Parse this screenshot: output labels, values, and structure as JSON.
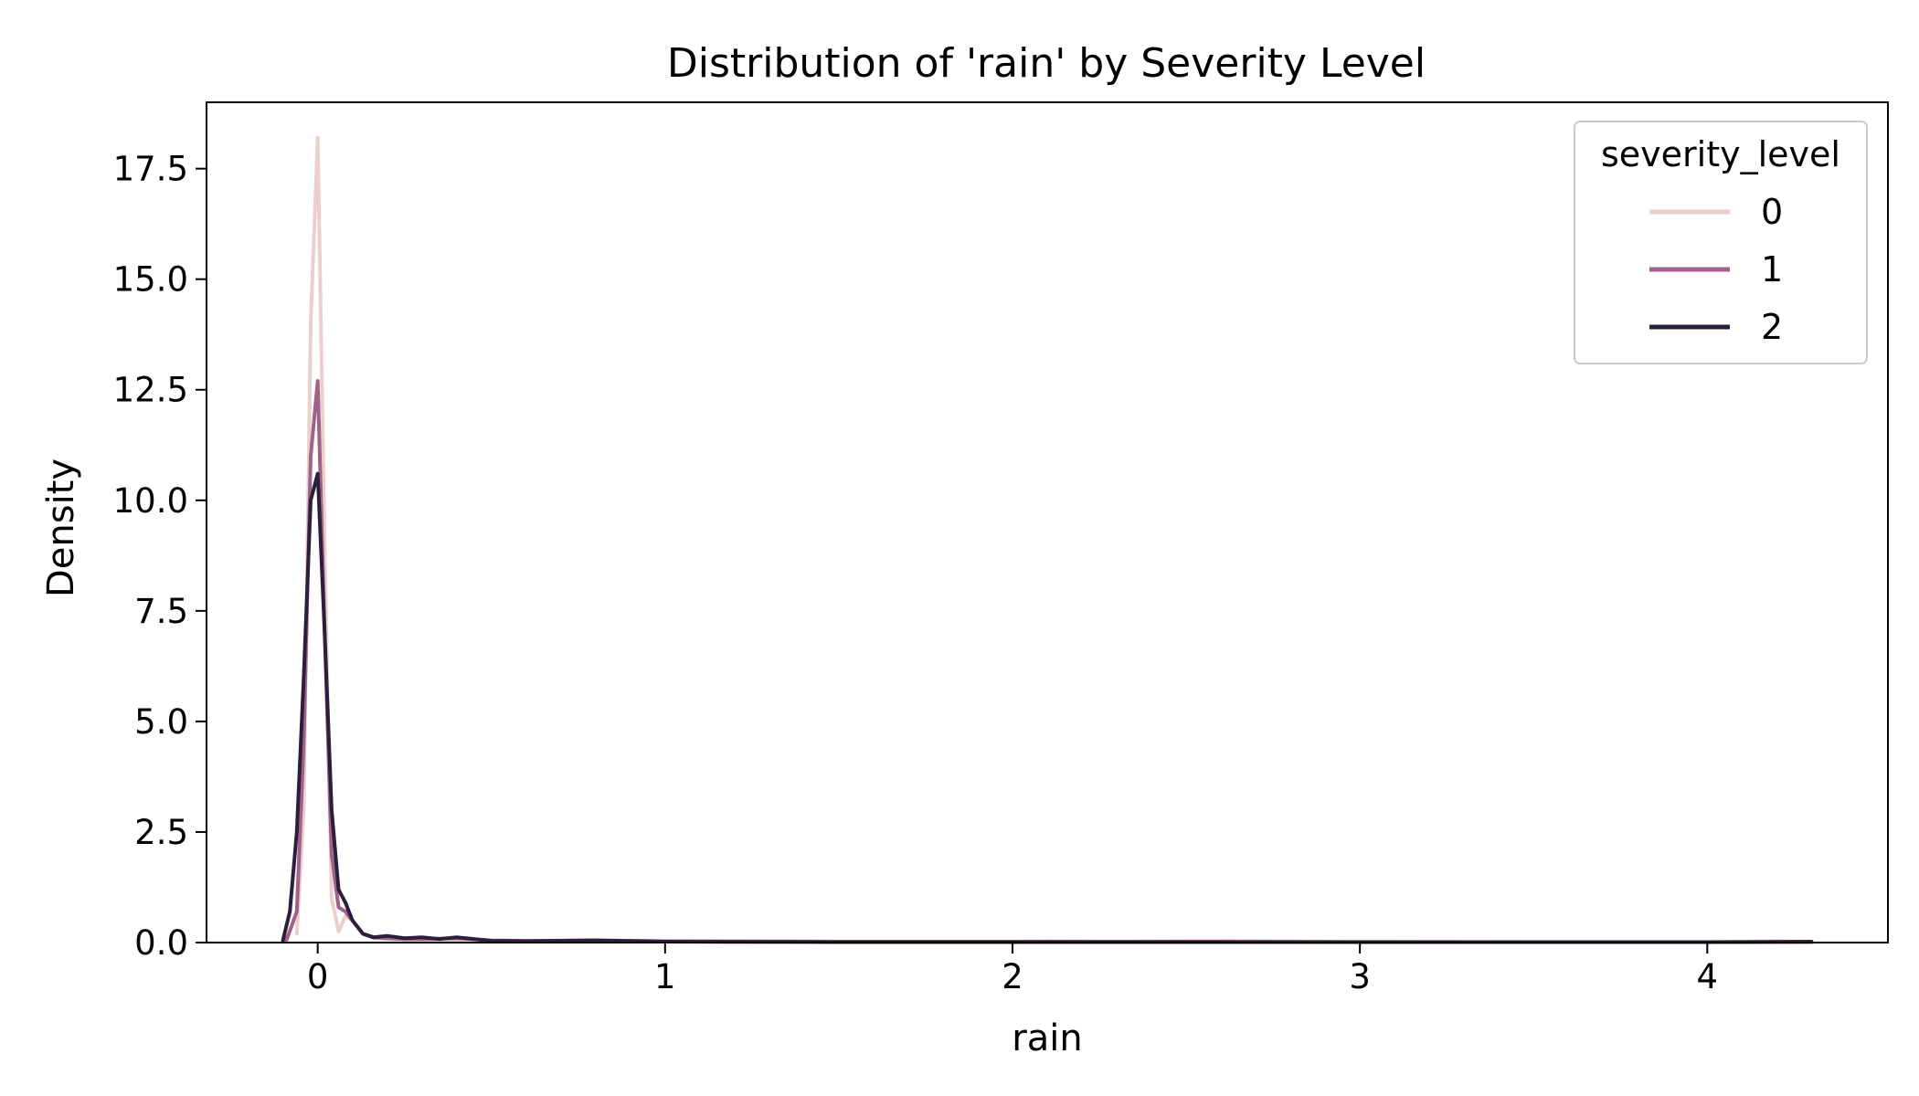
{
  "chart_data": {
    "type": "line",
    "title": "Distribution of 'rain' by Severity Level",
    "xlabel": "rain",
    "ylabel": "Density",
    "xlim": [
      -0.32,
      4.52
    ],
    "ylim": [
      0,
      19.0
    ],
    "xticks": [
      0,
      1,
      2,
      3,
      4
    ],
    "xtick_labels": [
      "0",
      "1",
      "2",
      "3",
      "4"
    ],
    "yticks": [
      0,
      2.5,
      5,
      7.5,
      10,
      12.5,
      15,
      17.5
    ],
    "ytick_labels": [
      "0.0",
      "2.5",
      "5.0",
      "7.5",
      "10.0",
      "12.5",
      "15.0",
      "17.5"
    ],
    "grid": false,
    "legend": {
      "title": "severity_level",
      "placement": "top-right"
    },
    "series": [
      {
        "name": "0",
        "color": "#ebcfcb",
        "x": [
          -0.06,
          -0.04,
          -0.02,
          0.0,
          0.02,
          0.04,
          0.06,
          0.08,
          0.1,
          0.13,
          0.16,
          0.2,
          0.25,
          0.3,
          0.4,
          0.6,
          0.8,
          1.0,
          1.5,
          2.0,
          2.1,
          2.3,
          2.6,
          3.0,
          3.5,
          4.0,
          4.2,
          4.3
        ],
        "y": [
          0.2,
          3.0,
          14.0,
          18.2,
          9.0,
          1.0,
          0.25,
          0.6,
          0.5,
          0.2,
          0.1,
          0.08,
          0.06,
          0.05,
          0.04,
          0.03,
          0.04,
          0.03,
          0.02,
          0.02,
          0.03,
          0.02,
          0.04,
          0.02,
          0.01,
          0.01,
          0.03,
          0.01
        ]
      },
      {
        "name": "1",
        "color": "#a1628a",
        "x": [
          -0.09,
          -0.06,
          -0.04,
          -0.02,
          0.0,
          0.02,
          0.04,
          0.06,
          0.08,
          0.1,
          0.13,
          0.16,
          0.2,
          0.25,
          0.3,
          0.4,
          0.5,
          0.6,
          0.8,
          1.0,
          1.5,
          2.0,
          2.5,
          3.0,
          4.0,
          4.3
        ],
        "y": [
          0.05,
          0.7,
          4.5,
          11.0,
          12.7,
          7.0,
          2.0,
          0.8,
          0.7,
          0.5,
          0.2,
          0.12,
          0.1,
          0.08,
          0.08,
          0.1,
          0.05,
          0.04,
          0.05,
          0.03,
          0.02,
          0.02,
          0.02,
          0.01,
          0.01,
          0.01
        ]
      },
      {
        "name": "2",
        "color": "#2d1e3e",
        "x": [
          -0.1,
          -0.08,
          -0.06,
          -0.04,
          -0.02,
          0.0,
          0.02,
          0.04,
          0.06,
          0.08,
          0.1,
          0.13,
          0.16,
          0.2,
          0.25,
          0.3,
          0.35,
          0.4,
          0.5,
          0.6,
          0.8,
          1.0,
          1.5,
          2.0,
          3.0,
          4.0,
          4.3
        ],
        "y": [
          0.05,
          0.7,
          2.5,
          6.0,
          10.0,
          10.6,
          7.0,
          3.0,
          1.2,
          0.9,
          0.5,
          0.2,
          0.12,
          0.15,
          0.1,
          0.12,
          0.08,
          0.12,
          0.04,
          0.03,
          0.05,
          0.02,
          0.01,
          0.01,
          0.01,
          0.01,
          0.02
        ]
      }
    ]
  }
}
